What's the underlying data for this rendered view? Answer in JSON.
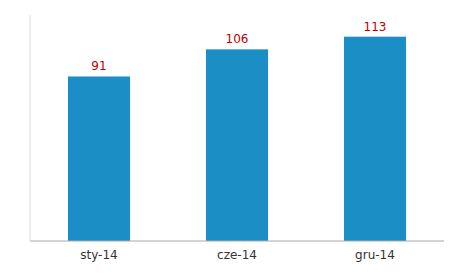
{
  "chart_data": {
    "type": "bar",
    "categories": [
      "sty-14",
      "cze-14",
      "gru-14"
    ],
    "values": [
      91,
      106,
      113
    ],
    "color": "#1B8EC5",
    "ylim": [
      0,
      125
    ],
    "grid": false,
    "data_labels": true,
    "tick_labels": "x"
  }
}
